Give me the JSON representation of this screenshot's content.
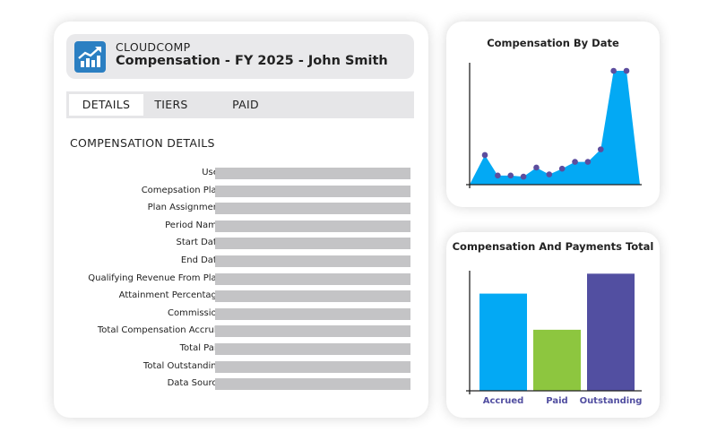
{
  "app": {
    "name": "CLOUDCOMP",
    "title": "Compensation - FY 2025 - John Smith",
    "icon": "trending-up-chart-icon"
  },
  "tabs": [
    {
      "label": "DETAILS",
      "active": true
    },
    {
      "label": "TIERS",
      "active": false
    },
    {
      "label": "PAID",
      "active": false
    }
  ],
  "details": {
    "section_title": "COMPENSATION DETAILS",
    "fields": [
      {
        "label": "User",
        "value": ""
      },
      {
        "label": "Comepsation Plan",
        "value": ""
      },
      {
        "label": "Plan Assignment",
        "value": ""
      },
      {
        "label": "Period Name",
        "value": ""
      },
      {
        "label": "Start Date",
        "value": ""
      },
      {
        "label": "End Date",
        "value": ""
      },
      {
        "label": "Qualifying Revenue From Plan",
        "value": ""
      },
      {
        "label": "Attainment Percentage",
        "value": ""
      },
      {
        "label": "Commission",
        "value": ""
      },
      {
        "label": "Total Compensation Accruld",
        "value": ""
      },
      {
        "label": "Total Paid",
        "value": ""
      },
      {
        "label": "Total Outstanding",
        "value": ""
      },
      {
        "label": "Data Source",
        "value": ""
      }
    ]
  },
  "colors": {
    "accent": "#2b7fc2",
    "area_fill": "#03a9f4",
    "point": "#5c4d9e",
    "accrued": "#03a9f4",
    "paid": "#8dc63f",
    "outstanding": "#524fa1",
    "value_bar": "#c4c4c6"
  },
  "chart_data": [
    {
      "type": "area",
      "title": "Compensation By Date",
      "xlabel": "",
      "ylabel": "",
      "x": [
        1,
        2,
        3,
        4,
        5,
        6,
        7,
        8,
        9,
        10,
        11,
        12
      ],
      "values": [
        26,
        8,
        8,
        7,
        15,
        9,
        14,
        20,
        20,
        31,
        100,
        100
      ],
      "ylim": [
        0,
        100
      ]
    },
    {
      "type": "bar",
      "title": "Compensation And Payments Total",
      "categories": [
        "Accrued",
        "Paid",
        "Outstanding"
      ],
      "values": [
        78,
        49,
        94
      ],
      "ylim": [
        0,
        100
      ]
    }
  ]
}
